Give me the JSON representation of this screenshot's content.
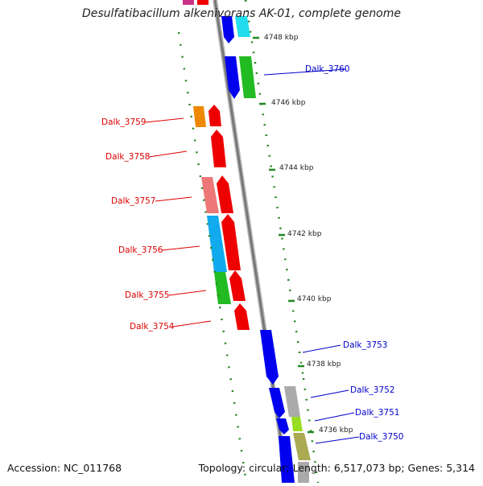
{
  "title": "Desulfatibacillum alkenivorans AK-01, complete genome",
  "footer": {
    "accession": "Accession: NC_011768",
    "summary": "Topology: circular; Length: 6,517,073 bp; Genes: 5,314"
  },
  "ticks": [
    "4748 kbp",
    "4746 kbp",
    "4744 kbp",
    "4742 kbp",
    "4740 kbp",
    "4738 kbp",
    "4736 kbp"
  ],
  "genes_left": [
    "Dalk_3759",
    "Dalk_3758",
    "Dalk_3757",
    "Dalk_3756",
    "Dalk_3755",
    "Dalk_3754"
  ],
  "genes_right": [
    "Dalk_3760",
    "Dalk_3753",
    "Dalk_3752",
    "Dalk_3751",
    "Dalk_3750"
  ],
  "colors": {
    "forward_strand": "#0000ee",
    "reverse_strand": "#ee0000",
    "backbone": "#888888",
    "dots": "#228822",
    "left_label": "#dd0000",
    "right_label": "#0000cc"
  }
}
